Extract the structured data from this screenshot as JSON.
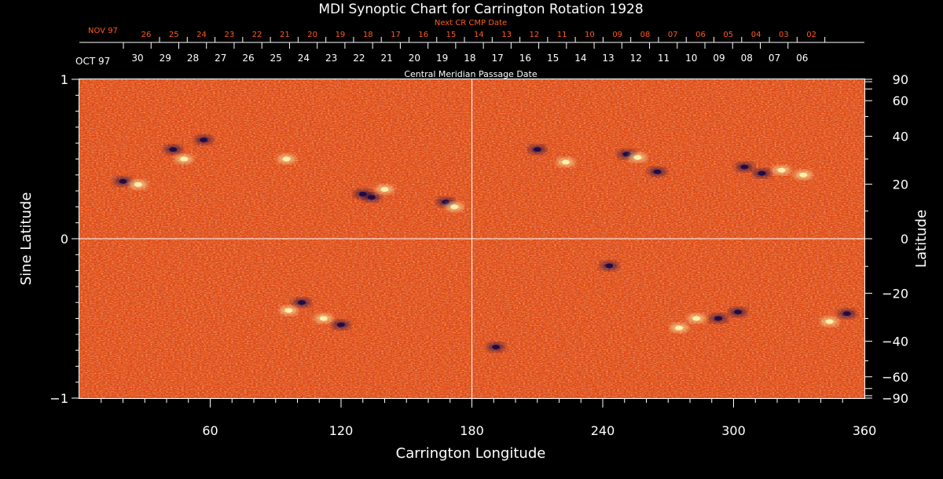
{
  "chart_data": {
    "type": "heatmap",
    "title": "MDI Synoptic Chart for Carrington Rotation 1928",
    "xlabel": "Carrington Longitude",
    "ylabel_left": "Sine Latitude",
    "ylabel_right": "Latitude",
    "xlim": [
      0,
      360
    ],
    "ylim": [
      -1,
      1
    ],
    "x_ticks": [
      "60",
      "120",
      "180",
      "240",
      "300",
      "360"
    ],
    "x_tick_values": [
      60,
      120,
      180,
      240,
      300,
      360
    ],
    "y_left_ticks": [
      "1",
      "0",
      "−1"
    ],
    "y_left_tick_values": [
      1,
      0,
      -1
    ],
    "y_right_ticks": [
      "90",
      "60",
      "40",
      "20",
      "0",
      "−20",
      "−40",
      "−60",
      "−90"
    ],
    "y_right_tick_degrees": [
      90,
      60,
      40,
      20,
      0,
      -20,
      -40,
      -60,
      -90
    ],
    "grid_lines": {
      "longitude": 180,
      "sine_latitude": 0
    },
    "top_axis_title": "Central Meridian Passage Date",
    "top_axis_month": "OCT 97",
    "top_axis_dates": [
      "30",
      "29",
      "28",
      "27",
      "26",
      "25",
      "24",
      "23",
      "22",
      "21",
      "20",
      "19",
      "18",
      "17",
      "16",
      "15",
      "14",
      "13",
      "12",
      "11",
      "10",
      "09",
      "08",
      "07",
      "06"
    ],
    "next_cr_title": "Next CR CMP Date",
    "next_cr_month": "NOV 97",
    "next_cr_dates": [
      "26",
      "25",
      "24",
      "23",
      "22",
      "21",
      "20",
      "19",
      "18",
      "17",
      "16",
      "15",
      "14",
      "13",
      "12",
      "11",
      "10",
      "09",
      "08",
      "07",
      "06",
      "05",
      "04",
      "03",
      "02"
    ],
    "colors": {
      "background_field": "#e8420a",
      "positive_polarity": "#fff3b0",
      "negative_polarity": "#1a0a4a",
      "axis": "#ffffff",
      "next_cr_text": "#ff5a1e"
    },
    "active_regions": [
      {
        "lon": 20,
        "sinlat": 0.36,
        "polarity": "negative"
      },
      {
        "lon": 27,
        "sinlat": 0.34,
        "polarity": "positive"
      },
      {
        "lon": 43,
        "sinlat": 0.56,
        "polarity": "negative"
      },
      {
        "lon": 48,
        "sinlat": 0.5,
        "polarity": "positive"
      },
      {
        "lon": 57,
        "sinlat": 0.62,
        "polarity": "negative"
      },
      {
        "lon": 95,
        "sinlat": 0.5,
        "polarity": "positive"
      },
      {
        "lon": 130,
        "sinlat": 0.28,
        "polarity": "negative"
      },
      {
        "lon": 134,
        "sinlat": 0.26,
        "polarity": "negative"
      },
      {
        "lon": 140,
        "sinlat": 0.31,
        "polarity": "positive"
      },
      {
        "lon": 168,
        "sinlat": 0.23,
        "polarity": "negative"
      },
      {
        "lon": 172,
        "sinlat": 0.2,
        "polarity": "positive"
      },
      {
        "lon": 210,
        "sinlat": 0.56,
        "polarity": "negative"
      },
      {
        "lon": 223,
        "sinlat": 0.48,
        "polarity": "positive"
      },
      {
        "lon": 251,
        "sinlat": 0.53,
        "polarity": "negative"
      },
      {
        "lon": 256,
        "sinlat": 0.51,
        "polarity": "positive"
      },
      {
        "lon": 265,
        "sinlat": 0.42,
        "polarity": "negative"
      },
      {
        "lon": 305,
        "sinlat": 0.45,
        "polarity": "negative"
      },
      {
        "lon": 313,
        "sinlat": 0.41,
        "polarity": "negative"
      },
      {
        "lon": 322,
        "sinlat": 0.43,
        "polarity": "positive"
      },
      {
        "lon": 332,
        "sinlat": 0.4,
        "polarity": "positive"
      },
      {
        "lon": 102,
        "sinlat": -0.4,
        "polarity": "negative"
      },
      {
        "lon": 96,
        "sinlat": -0.45,
        "polarity": "positive"
      },
      {
        "lon": 120,
        "sinlat": -0.54,
        "polarity": "negative"
      },
      {
        "lon": 112,
        "sinlat": -0.5,
        "polarity": "positive"
      },
      {
        "lon": 243,
        "sinlat": -0.17,
        "polarity": "negative"
      },
      {
        "lon": 283,
        "sinlat": -0.5,
        "polarity": "positive"
      },
      {
        "lon": 293,
        "sinlat": -0.5,
        "polarity": "negative"
      },
      {
        "lon": 302,
        "sinlat": -0.46,
        "polarity": "negative"
      },
      {
        "lon": 275,
        "sinlat": -0.56,
        "polarity": "positive"
      },
      {
        "lon": 344,
        "sinlat": -0.52,
        "polarity": "positive"
      },
      {
        "lon": 352,
        "sinlat": -0.47,
        "polarity": "negative"
      },
      {
        "lon": 191,
        "sinlat": -0.68,
        "polarity": "negative"
      }
    ]
  }
}
